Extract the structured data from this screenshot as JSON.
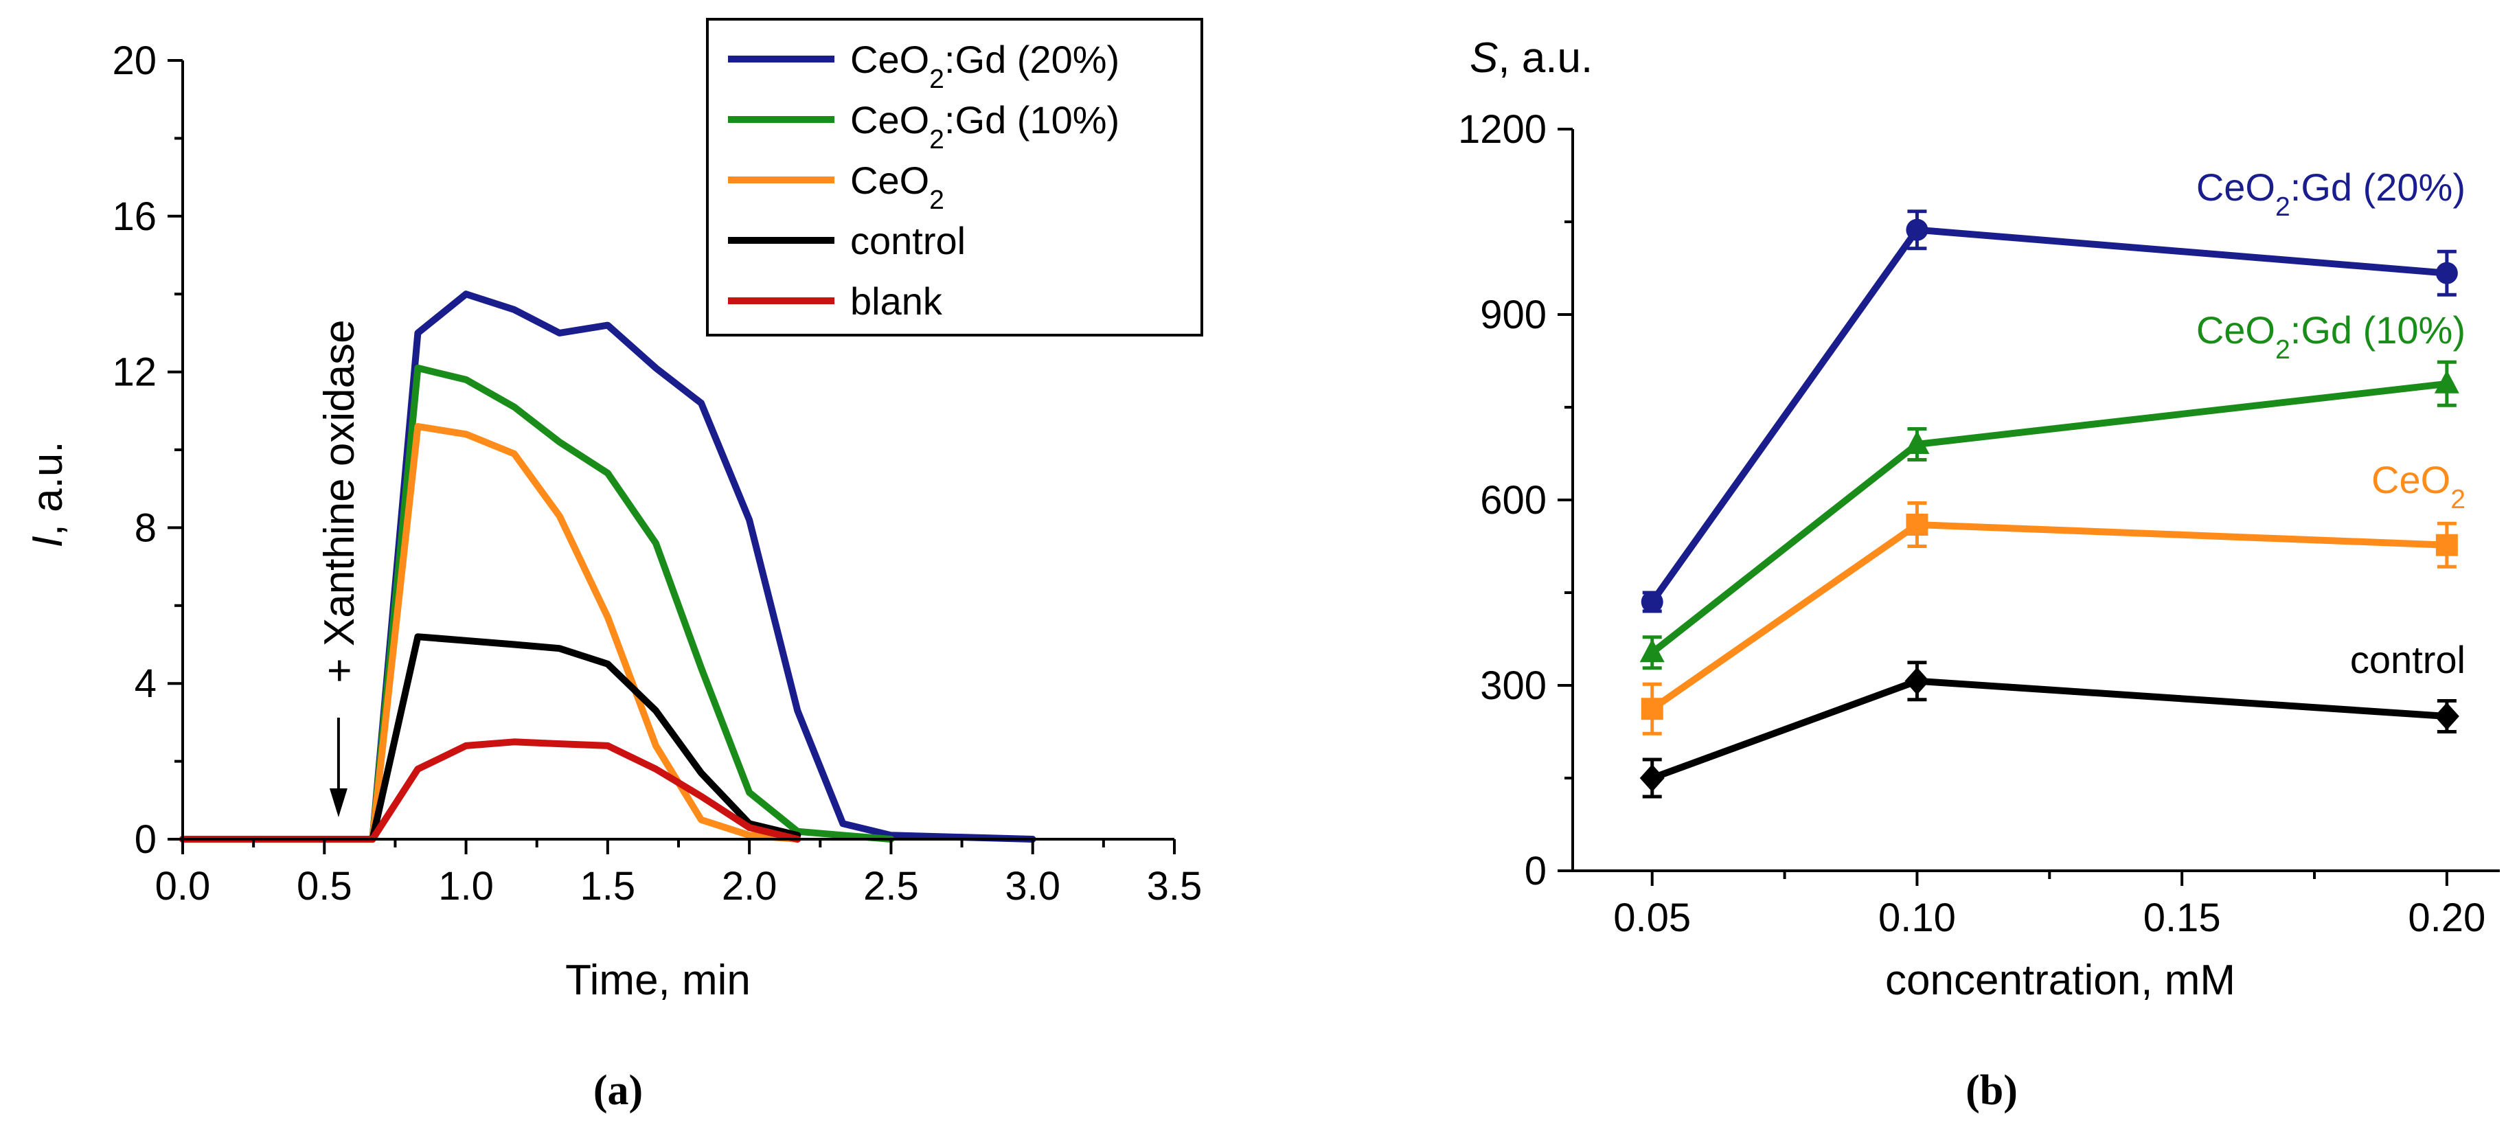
{
  "chart_data": [
    {
      "type": "line",
      "panel_label": "(a)",
      "xlabel": "Time, min",
      "ylabel_italic": "I",
      "ylabel_rest": ", a.u.",
      "xlim": [
        0.0,
        3.5
      ],
      "ylim": [
        0,
        20
      ],
      "xticks": [
        "0.0",
        "0.5",
        "1.0",
        "1.5",
        "2.0",
        "2.5",
        "3.0",
        "3.5"
      ],
      "yticks": [
        "0",
        "4",
        "8",
        "12",
        "16",
        "20"
      ],
      "annotation": "+ Xanthine oxidase",
      "annotation_x": 0.55,
      "series": [
        {
          "name": "CeO2:Gd (20%)",
          "legend_base": "CeO",
          "legend_sub": "2",
          "legend_rest": ":Gd (20%)",
          "color": "#1a1d8c",
          "x": [
            0,
            0.67,
            0.83,
            1.0,
            1.17,
            1.33,
            1.5,
            1.67,
            1.83,
            2.0,
            2.17,
            2.33,
            2.5,
            3.0
          ],
          "y": [
            0,
            0,
            13.0,
            14.0,
            13.6,
            13.0,
            13.2,
            12.1,
            11.2,
            8.2,
            3.3,
            0.4,
            0.1,
            0
          ]
        },
        {
          "name": "CeO2:Gd (10%)",
          "legend_base": "CeO",
          "legend_sub": "2",
          "legend_rest": ":Gd (10%)",
          "color": "#1a8c1a",
          "x": [
            0,
            0.67,
            0.83,
            1.0,
            1.17,
            1.33,
            1.5,
            1.67,
            1.83,
            2.0,
            2.17,
            2.33,
            2.5
          ],
          "y": [
            0,
            0,
            12.1,
            11.8,
            11.1,
            10.2,
            9.4,
            7.6,
            4.4,
            1.2,
            0.2,
            0.1,
            0
          ]
        },
        {
          "name": "CeO2",
          "legend_base": "CeO",
          "legend_sub": "2",
          "legend_rest": "",
          "color": "#ff8c1a",
          "x": [
            0,
            0.67,
            0.83,
            1.0,
            1.17,
            1.33,
            1.5,
            1.67,
            1.83,
            2.0,
            2.17
          ],
          "y": [
            0,
            0,
            10.6,
            10.4,
            9.9,
            8.3,
            5.7,
            2.4,
            0.5,
            0.1,
            0
          ]
        },
        {
          "name": "control",
          "legend_base": "control",
          "legend_sub": "",
          "legend_rest": "",
          "color": "#000000",
          "x": [
            0,
            0.67,
            0.83,
            1.0,
            1.17,
            1.33,
            1.5,
            1.67,
            1.83,
            2.0,
            2.17
          ],
          "y": [
            0,
            0,
            5.2,
            5.1,
            5.0,
            4.9,
            4.5,
            3.3,
            1.7,
            0.4,
            0.1
          ]
        },
        {
          "name": "blank",
          "legend_base": "blank",
          "legend_sub": "",
          "legend_rest": "",
          "color": "#cc1111",
          "x": [
            0,
            0.67,
            0.83,
            1.0,
            1.17,
            1.33,
            1.5,
            1.67,
            1.83,
            2.0,
            2.17
          ],
          "y": [
            0,
            0,
            1.8,
            2.4,
            2.5,
            2.45,
            2.4,
            1.8,
            1.1,
            0.3,
            0
          ]
        }
      ]
    },
    {
      "type": "line",
      "panel_label": "(b)",
      "xlabel": "concentration, mM",
      "ylabel_italic": "S",
      "ylabel_rest": ", a.u.",
      "xlim": [
        0.035,
        0.21
      ],
      "ylim": [
        0,
        1200
      ],
      "xticks": [
        "0.05",
        "0.10",
        "0.15",
        "0.20"
      ],
      "yticks": [
        "0",
        "300",
        "600",
        "900",
        "1200"
      ],
      "series": [
        {
          "name": "CeO2:Gd (20%)",
          "label_base": "CeO",
          "label_sub": "2",
          "label_rest": ":Gd (20%)",
          "color": "#1a1d8c",
          "marker": "circle",
          "x": [
            0.05,
            0.1,
            0.2
          ],
          "y": [
            435,
            1037,
            967
          ],
          "err": [
            15,
            30,
            35
          ]
        },
        {
          "name": "CeO2:Gd (10%)",
          "label_base": "CeO",
          "label_sub": "2",
          "label_rest": ":Gd (10%)",
          "color": "#1a8c1a",
          "marker": "triangle",
          "x": [
            0.05,
            0.1,
            0.2
          ],
          "y": [
            353,
            690,
            788
          ],
          "err": [
            25,
            25,
            35
          ]
        },
        {
          "name": "CeO2",
          "label_base": "CeO",
          "label_sub": "2",
          "label_rest": "",
          "color": "#ff8c1a",
          "marker": "square",
          "x": [
            0.05,
            0.1,
            0.2
          ],
          "y": [
            262,
            560,
            527
          ],
          "err": [
            40,
            35,
            35
          ]
        },
        {
          "name": "control",
          "label_base": "control",
          "label_sub": "",
          "label_rest": "",
          "color": "#000000",
          "marker": "diamond",
          "x": [
            0.05,
            0.1,
            0.2
          ],
          "y": [
            150,
            307,
            250
          ],
          "err": [
            30,
            30,
            25
          ]
        }
      ]
    }
  ]
}
